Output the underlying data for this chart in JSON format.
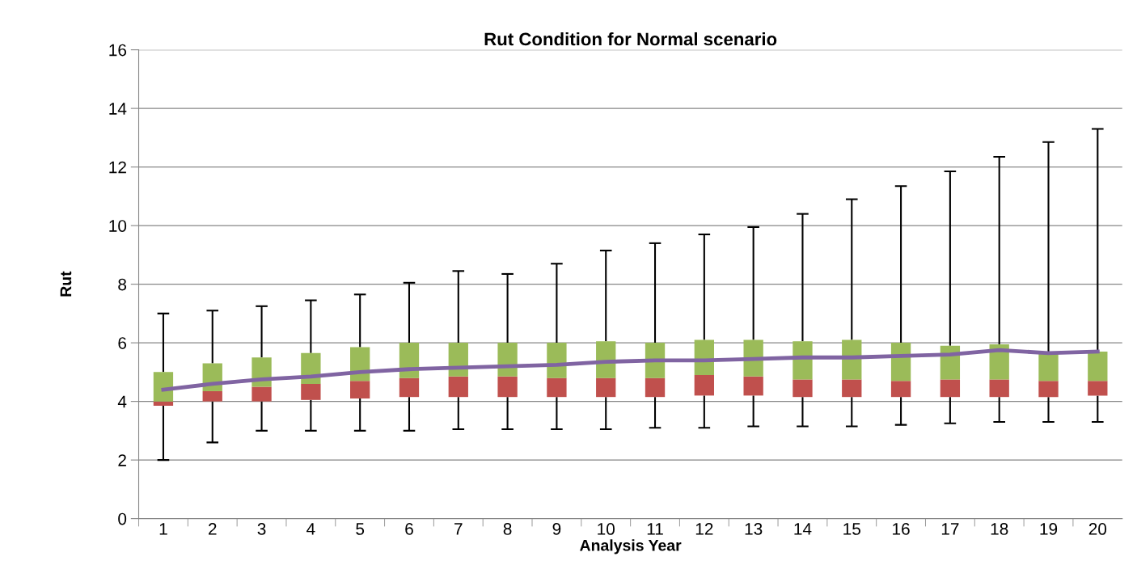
{
  "chart_data": {
    "type": "box",
    "title": "Rut Condition for Normal scenario",
    "xlabel": "Analysis Year",
    "ylabel": "Rut",
    "categories": [
      "1",
      "2",
      "3",
      "4",
      "5",
      "6",
      "7",
      "8",
      "9",
      "10",
      "11",
      "12",
      "13",
      "14",
      "15",
      "16",
      "17",
      "18",
      "19",
      "20"
    ],
    "ylim": [
      0,
      16
    ],
    "yticks": [
      0,
      2,
      4,
      6,
      8,
      10,
      12,
      14,
      16
    ],
    "grid": "y",
    "series": [
      {
        "colors": [
          [
            "#c0504d",
            "#9bbb59"
          ],
          [
            "#c0504d",
            "#9bbb59"
          ],
          [
            "#c0504d",
            "#9bbb59"
          ],
          [
            "#c0504d",
            "#9bbb59"
          ],
          [
            "#c0504d",
            "#9bbb59"
          ],
          [
            "#c0504d",
            "#9bbb59"
          ],
          [
            "#c0504d",
            "#9bbb59"
          ],
          [
            "#c0504d",
            "#9bbb59"
          ],
          [
            "#c0504d",
            "#9bbb59"
          ],
          [
            "#c0504d",
            "#9bbb59"
          ],
          [
            "#c0504d",
            "#9bbb59"
          ],
          [
            "#c0504d",
            "#9bbb59"
          ],
          [
            "#c0504d",
            "#9bbb59"
          ],
          [
            "#c0504d",
            "#9bbb59"
          ],
          [
            "#c0504d",
            "#9bbb59"
          ],
          [
            "#c0504d",
            "#9bbb59"
          ],
          [
            "#c0504d",
            "#9bbb59"
          ],
          [
            "#c0504d",
            "#9bbb59"
          ],
          [
            "#c0504d",
            "#9bbb59"
          ],
          [
            "#c0504d",
            "#9bbb59"
          ]
        ],
        "boxes": [
          {
            "low": 2.0,
            "q1": 3.85,
            "median": 4.0,
            "q3": 5.0,
            "high": 7.0
          },
          {
            "low": 2.6,
            "q1": 4.0,
            "median": 4.35,
            "q3": 5.3,
            "high": 7.1
          },
          {
            "low": 3.0,
            "q1": 4.0,
            "median": 4.5,
            "q3": 5.5,
            "high": 7.25
          },
          {
            "low": 3.0,
            "q1": 4.05,
            "median": 4.6,
            "q3": 5.65,
            "high": 7.45
          },
          {
            "low": 3.0,
            "q1": 4.1,
            "median": 4.7,
            "q3": 5.85,
            "high": 7.65
          },
          {
            "low": 3.0,
            "q1": 4.15,
            "median": 4.8,
            "q3": 6.0,
            "high": 8.05
          },
          {
            "low": 3.05,
            "q1": 4.15,
            "median": 4.85,
            "q3": 6.0,
            "high": 8.45
          },
          {
            "low": 3.05,
            "q1": 4.15,
            "median": 4.85,
            "q3": 6.0,
            "high": 8.35
          },
          {
            "low": 3.05,
            "q1": 4.15,
            "median": 4.8,
            "q3": 6.0,
            "high": 8.7
          },
          {
            "low": 3.05,
            "q1": 4.15,
            "median": 4.8,
            "q3": 6.05,
            "high": 9.15
          },
          {
            "low": 3.1,
            "q1": 4.15,
            "median": 4.8,
            "q3": 6.0,
            "high": 9.4
          },
          {
            "low": 3.1,
            "q1": 4.2,
            "median": 4.9,
            "q3": 6.1,
            "high": 9.7
          },
          {
            "low": 3.15,
            "q1": 4.2,
            "median": 4.85,
            "q3": 6.1,
            "high": 9.95
          },
          {
            "low": 3.15,
            "q1": 4.15,
            "median": 4.75,
            "q3": 6.05,
            "high": 10.4
          },
          {
            "low": 3.15,
            "q1": 4.15,
            "median": 4.75,
            "q3": 6.1,
            "high": 10.9
          },
          {
            "low": 3.2,
            "q1": 4.15,
            "median": 4.7,
            "q3": 6.0,
            "high": 11.35
          },
          {
            "low": 3.25,
            "q1": 4.15,
            "median": 4.75,
            "q3": 5.9,
            "high": 11.85
          },
          {
            "low": 3.3,
            "q1": 4.15,
            "median": 4.75,
            "q3": 5.95,
            "high": 12.35
          },
          {
            "low": 3.3,
            "q1": 4.15,
            "median": 4.7,
            "q3": 5.7,
            "high": 12.85
          },
          {
            "low": 3.3,
            "q1": 4.2,
            "median": 4.7,
            "q3": 5.7,
            "high": 13.3
          }
        ]
      },
      {
        "type": "line",
        "color": "#8064a2",
        "marker": "none",
        "line_style": "solid",
        "values": [
          4.4,
          4.6,
          4.75,
          4.85,
          5.0,
          5.1,
          5.15,
          5.2,
          5.25,
          5.35,
          5.4,
          5.4,
          5.45,
          5.5,
          5.5,
          5.55,
          5.6,
          5.75,
          5.65,
          5.7
        ]
      }
    ]
  }
}
